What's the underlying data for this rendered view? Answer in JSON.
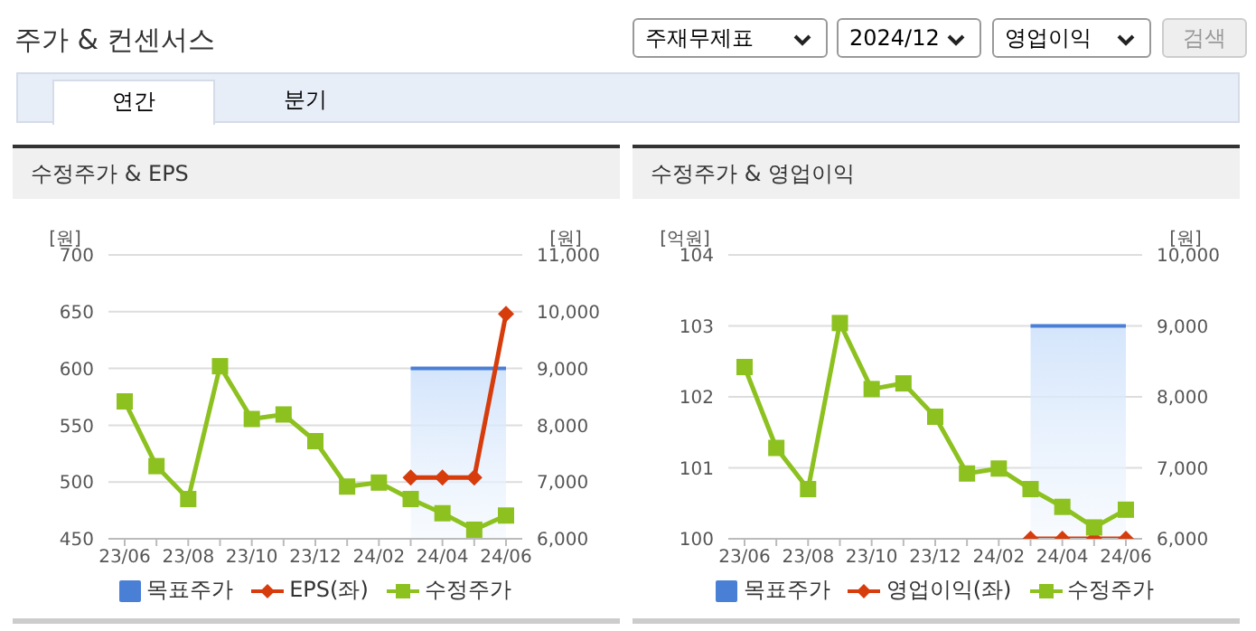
{
  "chart_data": [
    {
      "type": "other",
      "title": "주가 & 컨센서스",
      "annotations": [
        "주재무제표",
        "2024/12",
        "영업이익",
        "검색",
        "연간",
        "분기"
      ]
    },
    {
      "type": "line",
      "title": "수정주가 & EPS",
      "ylabel": "[원]",
      "y2label": "[원]",
      "categories": [
        "23/06",
        null,
        "23/08",
        null,
        "23/10",
        null,
        "23/12",
        null,
        "24/02",
        null,
        "24/04",
        null,
        "24/06"
      ],
      "series": [
        {
          "name": "목표주가",
          "type": "area",
          "axis": "y2",
          "color": "#4a7fd6",
          "marker": "none",
          "values": [
            null,
            null,
            null,
            null,
            null,
            null,
            null,
            null,
            null,
            9000,
            9000,
            9000,
            9000
          ]
        },
        {
          "name": "EPS(좌)",
          "type": "line",
          "color": "#d63c0c",
          "marker": "diamond",
          "values": [
            null,
            null,
            null,
            null,
            null,
            null,
            null,
            null,
            null,
            504,
            504,
            504,
            648
          ]
        },
        {
          "name": "수정주가",
          "type": "line",
          "axis": "y2",
          "color": "#8cc11f",
          "marker": "square",
          "values": [
            8420,
            7280,
            6700,
            9040,
            8110,
            8190,
            7720,
            6920,
            6990,
            6700,
            6450,
            6160,
            6410
          ]
        }
      ],
      "ylim": [
        450,
        700
      ],
      "yticks": [
        450,
        500,
        550,
        600,
        650,
        700
      ],
      "y2lim": [
        6000,
        11000
      ],
      "y2ticks": [
        {
          "value": 6000,
          "label": "6,000"
        },
        {
          "value": 7000,
          "label": "7,000"
        },
        {
          "value": 8000,
          "label": "8,000"
        },
        {
          "value": 9000,
          "label": "9,000"
        },
        {
          "value": 10000,
          "label": "10,000"
        },
        {
          "value": 11000,
          "label": "11,000"
        }
      ],
      "grid": "y",
      "legend": "bottom"
    },
    {
      "type": "line",
      "title": "수정주가 & 영업이익",
      "ylabel": "[억원]",
      "y2label": "[원]",
      "categories": [
        "23/06",
        null,
        "23/08",
        null,
        "23/10",
        null,
        "23/12",
        null,
        "24/02",
        null,
        "24/04",
        null,
        "24/06"
      ],
      "series": [
        {
          "name": "목표주가",
          "type": "area",
          "axis": "y2",
          "color": "#4a7fd6",
          "marker": "none",
          "values": [
            null,
            null,
            null,
            null,
            null,
            null,
            null,
            null,
            null,
            9000,
            9000,
            9000,
            9000
          ]
        },
        {
          "name": "영업이익(좌)",
          "type": "line",
          "color": "#d63c0c",
          "marker": "diamond",
          "values": [
            null,
            null,
            null,
            null,
            null,
            null,
            null,
            null,
            null,
            100,
            100,
            100,
            100
          ]
        },
        {
          "name": "수정주가",
          "type": "line",
          "axis": "y2",
          "color": "#8cc11f",
          "marker": "square",
          "values": [
            8420,
            7280,
            6700,
            9040,
            8110,
            8190,
            7720,
            6920,
            6990,
            6700,
            6450,
            6160,
            6410
          ]
        }
      ],
      "ylim": [
        100,
        104
      ],
      "yticks": [
        100,
        101,
        102,
        103,
        104
      ],
      "y2lim": [
        6000,
        10000
      ],
      "y2ticks": [
        {
          "value": 6000,
          "label": "6,000"
        },
        {
          "value": 7000,
          "label": "7,000"
        },
        {
          "value": 8000,
          "label": "8,000"
        },
        {
          "value": 9000,
          "label": "9,000"
        },
        {
          "value": 10000,
          "label": "10,000"
        }
      ],
      "grid": "y",
      "legend": "bottom"
    }
  ]
}
